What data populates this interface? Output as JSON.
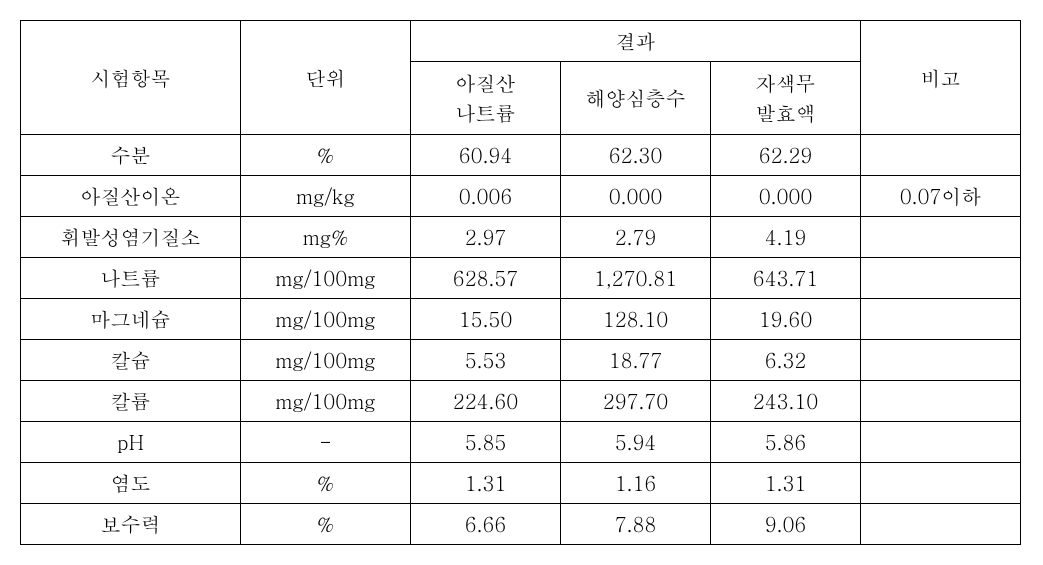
{
  "table": {
    "header": {
      "col_item": "시험항목",
      "col_unit": "단위",
      "col_results": "결과",
      "col_note": "비고",
      "sub_a": "아질산\n나트륨",
      "sub_b": "해양심층수",
      "sub_c": "자색무\n발효액"
    },
    "rows": [
      {
        "item": "수분",
        "unit": "%",
        "a": "60.94",
        "b": "62.30",
        "c": "62.29",
        "note": ""
      },
      {
        "item": "아질산이온",
        "unit": "mg/kg",
        "a": "0.006",
        "b": "0.000",
        "c": "0.000",
        "note": "0.07이하"
      },
      {
        "item": "휘발성염기질소",
        "unit": "mg%",
        "a": "2.97",
        "b": "2.79",
        "c": "4.19",
        "note": ""
      },
      {
        "item": "나트륨",
        "unit": "mg/100mg",
        "a": "628.57",
        "b": "1,270.81",
        "c": "643.71",
        "note": ""
      },
      {
        "item": "마그네슘",
        "unit": "mg/100mg",
        "a": "15.50",
        "b": "128.10",
        "c": "19.60",
        "note": ""
      },
      {
        "item": "칼슘",
        "unit": "mg/100mg",
        "a": "5.53",
        "b": "18.77",
        "c": "6.32",
        "note": ""
      },
      {
        "item": "칼륨",
        "unit": "mg/100mg",
        "a": "224.60",
        "b": "297.70",
        "c": "243.10",
        "note": ""
      },
      {
        "item": "pH",
        "unit": "-",
        "a": "5.85",
        "b": "5.94",
        "c": "5.86",
        "note": ""
      },
      {
        "item": "염도",
        "unit": "%",
        "a": "1.31",
        "b": "1.16",
        "c": "1.31",
        "note": ""
      },
      {
        "item": "보수력",
        "unit": "%",
        "a": "6.66",
        "b": "7.88",
        "c": "9.06",
        "note": ""
      }
    ],
    "col_widths": [
      "220px",
      "170px",
      "150px",
      "150px",
      "150px",
      "160px"
    ]
  }
}
